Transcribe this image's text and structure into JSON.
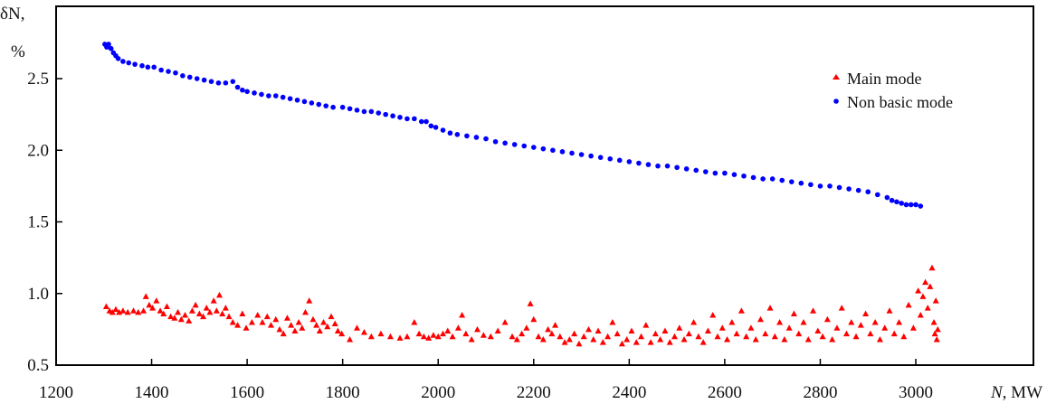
{
  "chart_data": {
    "type": "scatter",
    "title": "",
    "xlabel_symbol": "N",
    "xlabel_unit": ", MW",
    "ylabel_symbol": "δN",
    "ylabel_suffix": ",",
    "ylabel_unit": "%",
    "xlim": [
      1200,
      3100
    ],
    "ylim": [
      0.5,
      3.0
    ],
    "x_ticks": [
      1200,
      1400,
      1600,
      1800,
      2000,
      2200,
      2400,
      2600,
      2800,
      3000
    ],
    "y_ticks": [
      0.5,
      1.0,
      1.5,
      2.0,
      2.5
    ],
    "y_tick_labels": [
      "0.5",
      "1.0",
      "1.5",
      "2.0",
      "2.5"
    ],
    "grid": false,
    "legend_position": "top-right",
    "series": [
      {
        "name": "Main mode",
        "marker": "triangle",
        "color": "#ff0000",
        "points": [
          [
            1305,
            0.91
          ],
          [
            1312,
            0.88
          ],
          [
            1318,
            0.87
          ],
          [
            1325,
            0.89
          ],
          [
            1332,
            0.87
          ],
          [
            1340,
            0.88
          ],
          [
            1350,
            0.87
          ],
          [
            1362,
            0.88
          ],
          [
            1372,
            0.87
          ],
          [
            1383,
            0.88
          ],
          [
            1388,
            0.98
          ],
          [
            1395,
            0.92
          ],
          [
            1402,
            0.9
          ],
          [
            1410,
            0.95
          ],
          [
            1418,
            0.88
          ],
          [
            1425,
            0.86
          ],
          [
            1432,
            0.91
          ],
          [
            1440,
            0.84
          ],
          [
            1448,
            0.83
          ],
          [
            1455,
            0.87
          ],
          [
            1462,
            0.82
          ],
          [
            1470,
            0.85
          ],
          [
            1478,
            0.81
          ],
          [
            1485,
            0.88
          ],
          [
            1492,
            0.92
          ],
          [
            1500,
            0.86
          ],
          [
            1508,
            0.84
          ],
          [
            1515,
            0.9
          ],
          [
            1522,
            0.87
          ],
          [
            1530,
            0.95
          ],
          [
            1536,
            0.88
          ],
          [
            1542,
            0.99
          ],
          [
            1548,
            0.86
          ],
          [
            1555,
            0.9
          ],
          [
            1562,
            0.84
          ],
          [
            1570,
            0.8
          ],
          [
            1580,
            0.78
          ],
          [
            1590,
            0.86
          ],
          [
            1598,
            0.76
          ],
          [
            1610,
            0.8
          ],
          [
            1622,
            0.85
          ],
          [
            1632,
            0.8
          ],
          [
            1642,
            0.84
          ],
          [
            1650,
            0.78
          ],
          [
            1660,
            0.82
          ],
          [
            1668,
            0.75
          ],
          [
            1676,
            0.72
          ],
          [
            1684,
            0.83
          ],
          [
            1692,
            0.78
          ],
          [
            1700,
            0.74
          ],
          [
            1708,
            0.8
          ],
          [
            1715,
            0.76
          ],
          [
            1722,
            0.87
          ],
          [
            1730,
            0.95
          ],
          [
            1738,
            0.82
          ],
          [
            1745,
            0.78
          ],
          [
            1752,
            0.74
          ],
          [
            1760,
            0.8
          ],
          [
            1768,
            0.77
          ],
          [
            1776,
            0.84
          ],
          [
            1784,
            0.79
          ],
          [
            1790,
            0.74
          ],
          [
            1798,
            0.72
          ],
          [
            1815,
            0.68
          ],
          [
            1830,
            0.76
          ],
          [
            1845,
            0.73
          ],
          [
            1860,
            0.7
          ],
          [
            1880,
            0.72
          ],
          [
            1900,
            0.7
          ],
          [
            1920,
            0.69
          ],
          [
            1935,
            0.7
          ],
          [
            1950,
            0.8
          ],
          [
            1960,
            0.72
          ],
          [
            1970,
            0.7
          ],
          [
            1980,
            0.69
          ],
          [
            1990,
            0.71
          ],
          [
            2000,
            0.7
          ],
          [
            2010,
            0.72
          ],
          [
            2020,
            0.74
          ],
          [
            2030,
            0.7
          ],
          [
            2042,
            0.76
          ],
          [
            2050,
            0.85
          ],
          [
            2058,
            0.72
          ],
          [
            2070,
            0.68
          ],
          [
            2082,
            0.75
          ],
          [
            2095,
            0.71
          ],
          [
            2110,
            0.7
          ],
          [
            2125,
            0.74
          ],
          [
            2140,
            0.8
          ],
          [
            2155,
            0.7
          ],
          [
            2165,
            0.68
          ],
          [
            2175,
            0.72
          ],
          [
            2185,
            0.76
          ],
          [
            2193,
            0.93
          ],
          [
            2200,
            0.82
          ],
          [
            2210,
            0.7
          ],
          [
            2220,
            0.68
          ],
          [
            2230,
            0.75
          ],
          [
            2238,
            0.72
          ],
          [
            2245,
            0.78
          ],
          [
            2255,
            0.7
          ],
          [
            2265,
            0.66
          ],
          [
            2275,
            0.68
          ],
          [
            2285,
            0.72
          ],
          [
            2295,
            0.65
          ],
          [
            2305,
            0.7
          ],
          [
            2315,
            0.75
          ],
          [
            2325,
            0.68
          ],
          [
            2335,
            0.74
          ],
          [
            2345,
            0.66
          ],
          [
            2355,
            0.7
          ],
          [
            2365,
            0.8
          ],
          [
            2375,
            0.72
          ],
          [
            2385,
            0.65
          ],
          [
            2395,
            0.68
          ],
          [
            2405,
            0.74
          ],
          [
            2415,
            0.66
          ],
          [
            2425,
            0.7
          ],
          [
            2435,
            0.78
          ],
          [
            2445,
            0.66
          ],
          [
            2455,
            0.72
          ],
          [
            2465,
            0.68
          ],
          [
            2475,
            0.74
          ],
          [
            2485,
            0.66
          ],
          [
            2495,
            0.7
          ],
          [
            2505,
            0.76
          ],
          [
            2515,
            0.68
          ],
          [
            2525,
            0.72
          ],
          [
            2535,
            0.8
          ],
          [
            2545,
            0.7
          ],
          [
            2555,
            0.66
          ],
          [
            2565,
            0.74
          ],
          [
            2575,
            0.85
          ],
          [
            2585,
            0.7
          ],
          [
            2595,
            0.76
          ],
          [
            2605,
            0.68
          ],
          [
            2615,
            0.8
          ],
          [
            2625,
            0.72
          ],
          [
            2635,
            0.88
          ],
          [
            2645,
            0.7
          ],
          [
            2655,
            0.76
          ],
          [
            2665,
            0.68
          ],
          [
            2675,
            0.82
          ],
          [
            2685,
            0.72
          ],
          [
            2695,
            0.9
          ],
          [
            2705,
            0.7
          ],
          [
            2715,
            0.8
          ],
          [
            2725,
            0.68
          ],
          [
            2735,
            0.76
          ],
          [
            2745,
            0.86
          ],
          [
            2755,
            0.72
          ],
          [
            2765,
            0.8
          ],
          [
            2775,
            0.68
          ],
          [
            2785,
            0.88
          ],
          [
            2795,
            0.74
          ],
          [
            2805,
            0.7
          ],
          [
            2815,
            0.82
          ],
          [
            2825,
            0.68
          ],
          [
            2835,
            0.76
          ],
          [
            2845,
            0.9
          ],
          [
            2855,
            0.72
          ],
          [
            2865,
            0.8
          ],
          [
            2875,
            0.7
          ],
          [
            2885,
            0.78
          ],
          [
            2895,
            0.86
          ],
          [
            2905,
            0.72
          ],
          [
            2915,
            0.8
          ],
          [
            2925,
            0.68
          ],
          [
            2935,
            0.76
          ],
          [
            2945,
            0.88
          ],
          [
            2955,
            0.72
          ],
          [
            2965,
            0.8
          ],
          [
            2975,
            0.7
          ],
          [
            2985,
            0.92
          ],
          [
            2995,
            0.76
          ],
          [
            3005,
            1.02
          ],
          [
            3010,
            0.85
          ],
          [
            3015,
            0.98
          ],
          [
            3020,
            1.08
          ],
          [
            3025,
            0.9
          ],
          [
            3030,
            1.05
          ],
          [
            3034,
            1.18
          ],
          [
            3038,
            0.8
          ],
          [
            3040,
            0.72
          ],
          [
            3042,
            0.95
          ],
          [
            3044,
            0.68
          ],
          [
            3046,
            0.75
          ]
        ]
      },
      {
        "name": "Non basic mode",
        "marker": "circle",
        "color": "#0000ff",
        "points": [
          [
            1302,
            2.74
          ],
          [
            1306,
            2.72
          ],
          [
            1310,
            2.74
          ],
          [
            1315,
            2.71
          ],
          [
            1320,
            2.68
          ],
          [
            1325,
            2.66
          ],
          [
            1330,
            2.64
          ],
          [
            1340,
            2.62
          ],
          [
            1352,
            2.61
          ],
          [
            1365,
            2.6
          ],
          [
            1380,
            2.59
          ],
          [
            1392,
            2.58
          ],
          [
            1405,
            2.58
          ],
          [
            1420,
            2.56
          ],
          [
            1435,
            2.55
          ],
          [
            1450,
            2.54
          ],
          [
            1465,
            2.52
          ],
          [
            1480,
            2.51
          ],
          [
            1495,
            2.5
          ],
          [
            1510,
            2.49
          ],
          [
            1525,
            2.48
          ],
          [
            1540,
            2.47
          ],
          [
            1555,
            2.47
          ],
          [
            1570,
            2.48
          ],
          [
            1580,
            2.44
          ],
          [
            1590,
            2.42
          ],
          [
            1600,
            2.41
          ],
          [
            1615,
            2.4
          ],
          [
            1630,
            2.39
          ],
          [
            1645,
            2.38
          ],
          [
            1660,
            2.38
          ],
          [
            1675,
            2.37
          ],
          [
            1690,
            2.36
          ],
          [
            1705,
            2.35
          ],
          [
            1720,
            2.34
          ],
          [
            1735,
            2.33
          ],
          [
            1750,
            2.32
          ],
          [
            1765,
            2.31
          ],
          [
            1780,
            2.3
          ],
          [
            1800,
            2.3
          ],
          [
            1815,
            2.29
          ],
          [
            1830,
            2.28
          ],
          [
            1845,
            2.27
          ],
          [
            1860,
            2.27
          ],
          [
            1875,
            2.26
          ],
          [
            1890,
            2.25
          ],
          [
            1905,
            2.24
          ],
          [
            1920,
            2.23
          ],
          [
            1935,
            2.22
          ],
          [
            1950,
            2.22
          ],
          [
            1965,
            2.2
          ],
          [
            1975,
            2.2
          ],
          [
            1985,
            2.17
          ],
          [
            1995,
            2.16
          ],
          [
            2010,
            2.14
          ],
          [
            2025,
            2.12
          ],
          [
            2040,
            2.11
          ],
          [
            2060,
            2.1
          ],
          [
            2080,
            2.09
          ],
          [
            2100,
            2.08
          ],
          [
            2120,
            2.06
          ],
          [
            2140,
            2.05
          ],
          [
            2160,
            2.04
          ],
          [
            2180,
            2.03
          ],
          [
            2200,
            2.02
          ],
          [
            2220,
            2.01
          ],
          [
            2240,
            2.0
          ],
          [
            2260,
            1.99
          ],
          [
            2280,
            1.98
          ],
          [
            2300,
            1.97
          ],
          [
            2320,
            1.96
          ],
          [
            2340,
            1.95
          ],
          [
            2360,
            1.94
          ],
          [
            2380,
            1.93
          ],
          [
            2400,
            1.92
          ],
          [
            2420,
            1.91
          ],
          [
            2440,
            1.9
          ],
          [
            2460,
            1.89
          ],
          [
            2480,
            1.89
          ],
          [
            2500,
            1.88
          ],
          [
            2520,
            1.87
          ],
          [
            2540,
            1.86
          ],
          [
            2560,
            1.85
          ],
          [
            2580,
            1.84
          ],
          [
            2600,
            1.84
          ],
          [
            2620,
            1.83
          ],
          [
            2640,
            1.82
          ],
          [
            2660,
            1.81
          ],
          [
            2680,
            1.8
          ],
          [
            2700,
            1.8
          ],
          [
            2720,
            1.79
          ],
          [
            2740,
            1.78
          ],
          [
            2760,
            1.77
          ],
          [
            2780,
            1.76
          ],
          [
            2800,
            1.75
          ],
          [
            2820,
            1.75
          ],
          [
            2840,
            1.74
          ],
          [
            2860,
            1.73
          ],
          [
            2880,
            1.72
          ],
          [
            2900,
            1.71
          ],
          [
            2920,
            1.69
          ],
          [
            2940,
            1.67
          ],
          [
            2950,
            1.65
          ],
          [
            2960,
            1.64
          ],
          [
            2970,
            1.63
          ],
          [
            2980,
            1.62
          ],
          [
            2990,
            1.62
          ],
          [
            3000,
            1.62
          ],
          [
            3010,
            1.61
          ]
        ]
      }
    ]
  }
}
